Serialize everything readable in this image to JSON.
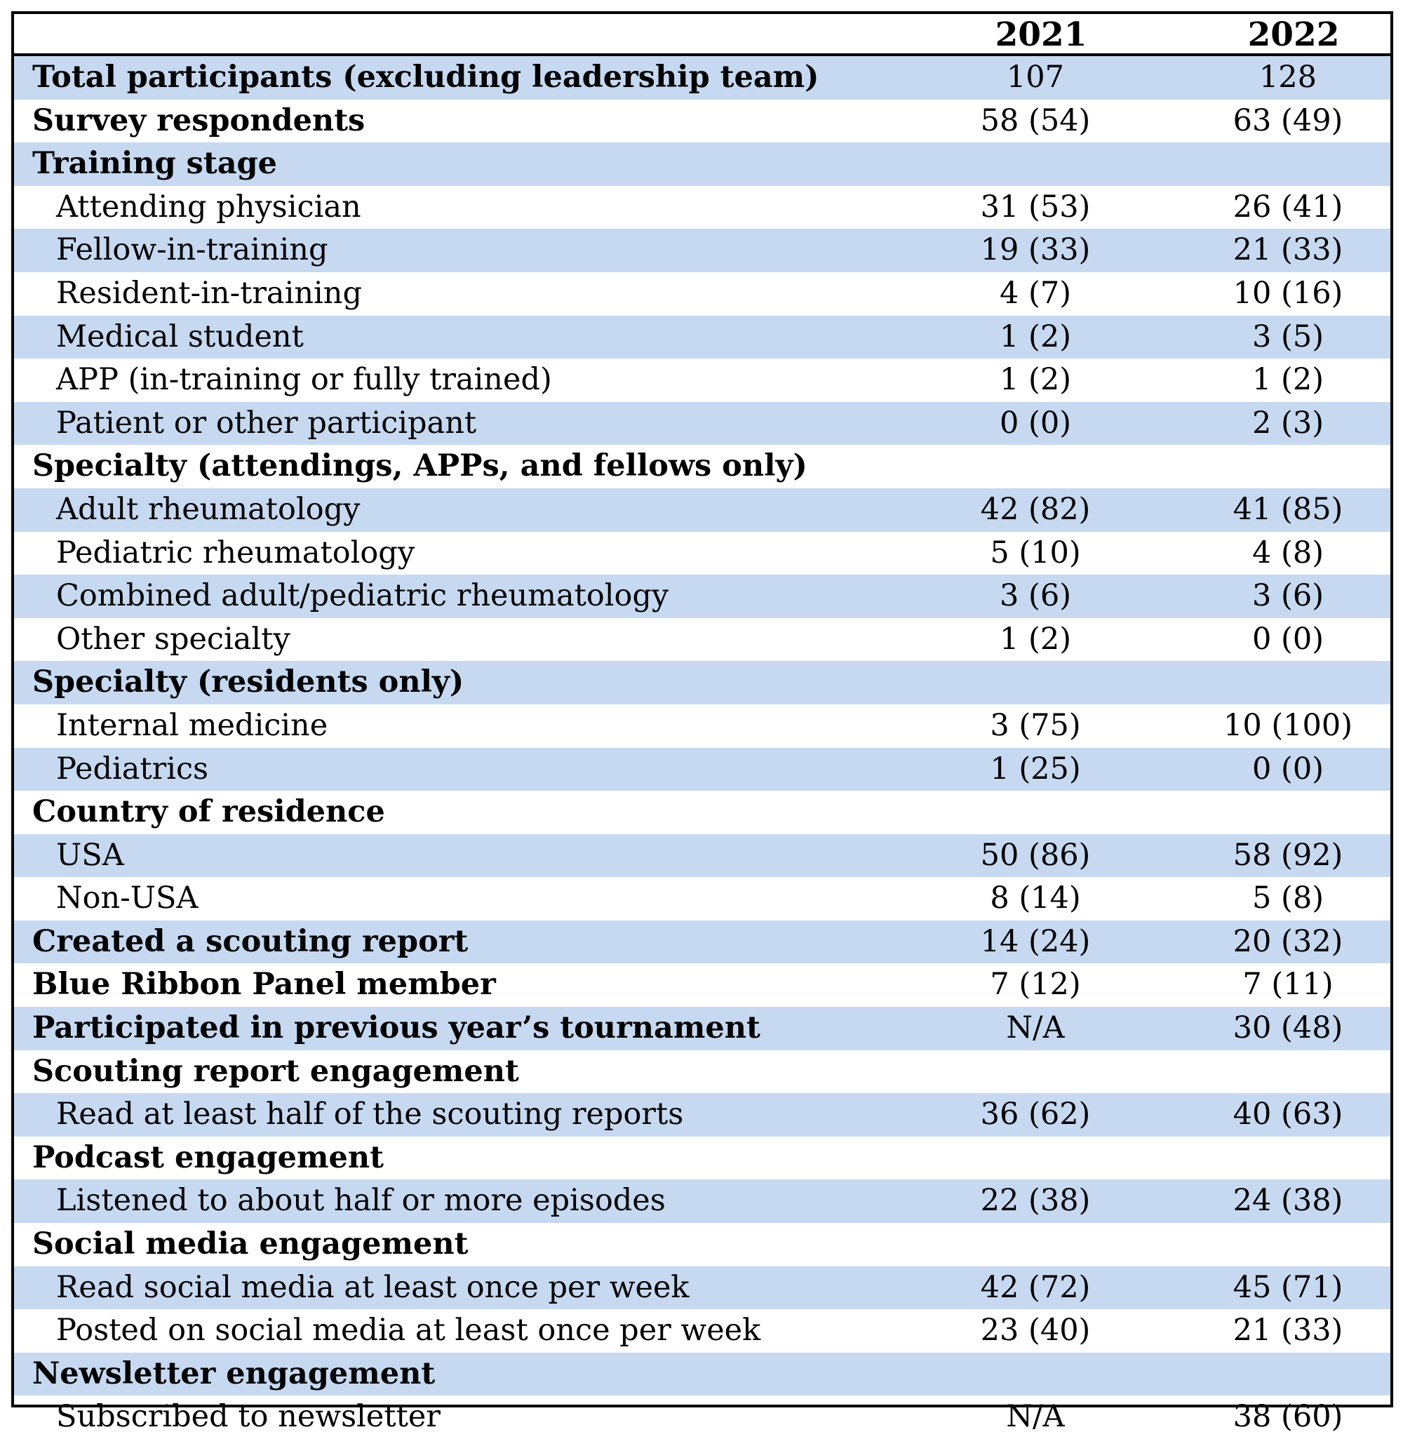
{
  "table": {
    "header": {
      "col1": "",
      "col2": "2021",
      "col3": "2022"
    },
    "rows": [
      {
        "label": "Total participants (excluding leadership team)",
        "v2021": "107",
        "v2022": "128",
        "style": "bold",
        "shaded": true
      },
      {
        "label": "Survey respondents",
        "v2021": "58 (54)",
        "v2022": "63 (49)",
        "style": "bold",
        "shaded": false
      },
      {
        "label": "Training stage",
        "v2021": "",
        "v2022": "",
        "style": "bold",
        "shaded": true
      },
      {
        "label": "Attending physician",
        "v2021": "31 (53)",
        "v2022": "26 (41)",
        "style": "indent",
        "shaded": false
      },
      {
        "label": "Fellow-in-training",
        "v2021": "19 (33)",
        "v2022": "21 (33)",
        "style": "indent",
        "shaded": true
      },
      {
        "label": "Resident-in-training",
        "v2021": "4 (7)",
        "v2022": "10 (16)",
        "style": "indent",
        "shaded": false
      },
      {
        "label": "Medical student",
        "v2021": "1 (2)",
        "v2022": "3 (5)",
        "style": "indent",
        "shaded": true
      },
      {
        "label": "APP (in-training or fully trained)",
        "v2021": "1 (2)",
        "v2022": "1 (2)",
        "style": "indent",
        "shaded": false
      },
      {
        "label": "Patient or other participant",
        "v2021": "0 (0)",
        "v2022": "2 (3)",
        "style": "indent",
        "shaded": true
      },
      {
        "label": "Specialty (attendings, APPs, and fellows only)",
        "v2021": "",
        "v2022": "",
        "style": "bold",
        "shaded": false
      },
      {
        "label": "Adult rheumatology",
        "v2021": "42 (82)",
        "v2022": "41 (85)",
        "style": "indent",
        "shaded": true
      },
      {
        "label": "Pediatric rheumatology",
        "v2021": "5 (10)",
        "v2022": "4 (8)",
        "style": "indent",
        "shaded": false
      },
      {
        "label": "Combined adult/pediatric rheumatology",
        "v2021": "3 (6)",
        "v2022": "3 (6)",
        "style": "indent",
        "shaded": true
      },
      {
        "label": "Other specialty",
        "v2021": "1 (2)",
        "v2022": "0 (0)",
        "style": "indent",
        "shaded": false
      },
      {
        "label": "Specialty (residents only)",
        "v2021": "",
        "v2022": "",
        "style": "bold",
        "shaded": true
      },
      {
        "label": "Internal medicine",
        "v2021": "3 (75)",
        "v2022": "10 (100)",
        "style": "indent",
        "shaded": false
      },
      {
        "label": "Pediatrics",
        "v2021": "1 (25)",
        "v2022": "0 (0)",
        "style": "indent",
        "shaded": true
      },
      {
        "label": "Country of residence",
        "v2021": "",
        "v2022": "",
        "style": "bold",
        "shaded": false
      },
      {
        "label": "USA",
        "v2021": "50 (86)",
        "v2022": "58 (92)",
        "style": "indent",
        "shaded": true
      },
      {
        "label": "Non-USA",
        "v2021": "8 (14)",
        "v2022": "5 (8)",
        "style": "indent",
        "shaded": false
      },
      {
        "label": "Created a scouting report",
        "v2021": "14 (24)",
        "v2022": "20 (32)",
        "style": "bold",
        "shaded": true
      },
      {
        "label": "Blue Ribbon Panel member",
        "v2021": "7 (12)",
        "v2022": "7 (11)",
        "style": "bold",
        "shaded": false
      },
      {
        "label": "Participated in previous year’s tournament",
        "v2021": "N/A",
        "v2022": "30 (48)",
        "style": "bold",
        "shaded": true
      },
      {
        "label": "Scouting report engagement",
        "v2021": "",
        "v2022": "",
        "style": "bold",
        "shaded": false
      },
      {
        "label": "Read at least half of the scouting reports",
        "v2021": "36 (62)",
        "v2022": "40 (63)",
        "style": "indent",
        "shaded": true
      },
      {
        "label": "Podcast engagement",
        "v2021": "",
        "v2022": "",
        "style": "bold",
        "shaded": false
      },
      {
        "label": "Listened to about half or more episodes",
        "v2021": "22 (38)",
        "v2022": "24 (38)",
        "style": "indent",
        "shaded": true
      },
      {
        "label": "Social media engagement",
        "v2021": "",
        "v2022": "",
        "style": "bold",
        "shaded": false
      },
      {
        "label": "Read social media at least once per week",
        "v2021": "42 (72)",
        "v2022": "45 (71)",
        "style": "indent",
        "shaded": true
      },
      {
        "label": "Posted on social media at least once per week",
        "v2021": "23 (40)",
        "v2022": "21 (33)",
        "style": "indent",
        "shaded": false
      },
      {
        "label": "Newsletter engagement",
        "v2021": "",
        "v2022": "",
        "style": "bold",
        "shaded": true
      },
      {
        "label": "Subscribed to newsletter",
        "v2021": "N/A",
        "v2022": "38 (60)",
        "style": "indent",
        "shaded": false
      }
    ]
  },
  "colors": {
    "shaded_row": "#c6d9f1",
    "border": "#000000",
    "text": "#000000"
  }
}
